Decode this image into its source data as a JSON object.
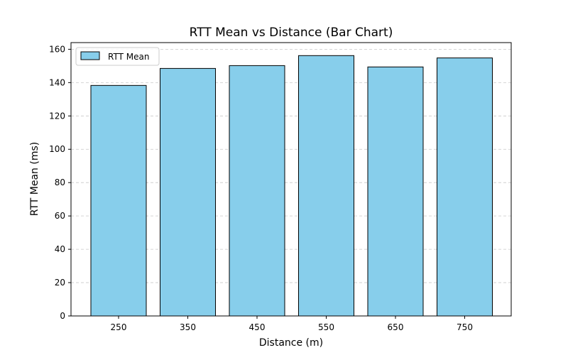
{
  "chart_data": {
    "type": "bar",
    "title": "RTT Mean vs Distance (Bar Chart)",
    "xlabel": "Distance (m)",
    "ylabel": "RTT Mean (ms)",
    "categories": [
      "250",
      "350",
      "450",
      "550",
      "650",
      "750"
    ],
    "series": [
      {
        "name": "RTT Mean",
        "values": [
          138.3,
          148.5,
          150.2,
          156.2,
          149.4,
          154.8
        ]
      }
    ],
    "ylim": [
      0,
      164
    ],
    "yticks": [
      0,
      20,
      40,
      60,
      80,
      100,
      120,
      140,
      160
    ],
    "grid": "y-dashed",
    "legend": "top-left",
    "colors": {
      "bar_fill": "#87CEEB",
      "bar_edge": "#000000",
      "grid": "#c8c8c8"
    }
  }
}
